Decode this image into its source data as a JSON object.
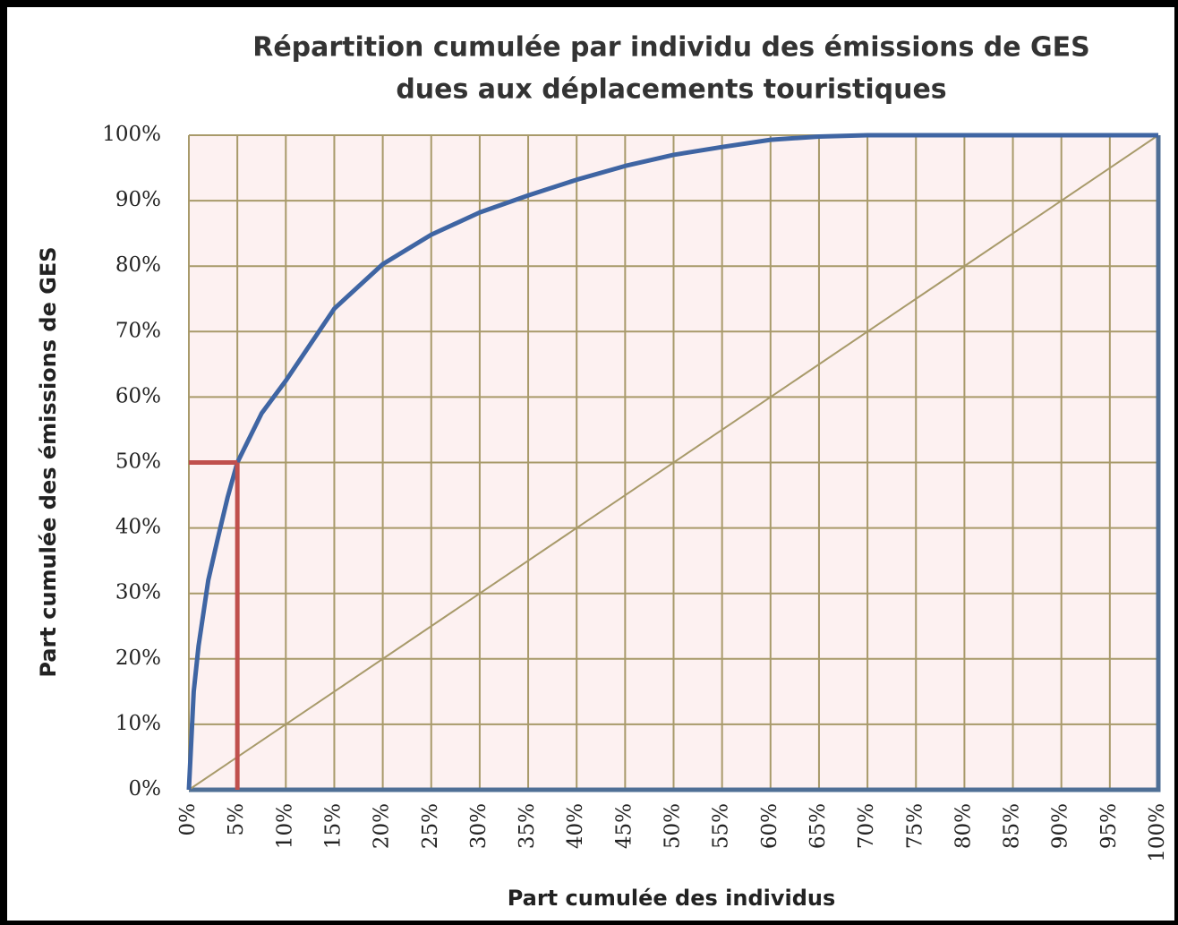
{
  "chart_data": {
    "type": "line",
    "title": [
      "Répartition cumulée par individu des émissions de GES",
      "dues aux déplacements touristiques"
    ],
    "x_label": "Part cumulée des individus",
    "y_label": "Part cumulée des émissions de GES",
    "xlim": [
      0,
      100
    ],
    "ylim": [
      0,
      100
    ],
    "xticks": [
      {
        "value": 0,
        "label": "0%"
      },
      {
        "value": 5,
        "label": "5%"
      },
      {
        "value": 10,
        "label": "10%"
      },
      {
        "value": 15,
        "label": "15%"
      },
      {
        "value": 20,
        "label": "20%"
      },
      {
        "value": 25,
        "label": "25%"
      },
      {
        "value": 30,
        "label": "30%"
      },
      {
        "value": 35,
        "label": "35%"
      },
      {
        "value": 40,
        "label": "40%"
      },
      {
        "value": 45,
        "label": "45%"
      },
      {
        "value": 50,
        "label": "50%"
      },
      {
        "value": 55,
        "label": "55%"
      },
      {
        "value": 60,
        "label": "60%"
      },
      {
        "value": 65,
        "label": "65%"
      },
      {
        "value": 70,
        "label": "70%"
      },
      {
        "value": 75,
        "label": "75%"
      },
      {
        "value": 80,
        "label": "80%"
      },
      {
        "value": 85,
        "label": "85%"
      },
      {
        "value": 90,
        "label": "90%"
      },
      {
        "value": 95,
        "label": "95%"
      },
      {
        "value": 100,
        "label": "100%"
      }
    ],
    "yticks": [
      {
        "value": 0,
        "label": "0%"
      },
      {
        "value": 10,
        "label": "10%"
      },
      {
        "value": 20,
        "label": "20%"
      },
      {
        "value": 30,
        "label": "30%"
      },
      {
        "value": 40,
        "label": "40%"
      },
      {
        "value": 50,
        "label": "50%"
      },
      {
        "value": 60,
        "label": "60%"
      },
      {
        "value": 70,
        "label": "70%"
      },
      {
        "value": 80,
        "label": "80%"
      },
      {
        "value": 90,
        "label": "90%"
      },
      {
        "value": 100,
        "label": "100%"
      }
    ],
    "grid": true,
    "series": [
      {
        "color": "#3f65a3",
        "x": [
          0,
          0.5,
          1,
          2,
          3,
          4,
          5,
          7.5,
          10,
          15,
          20,
          25,
          30,
          35,
          40,
          45,
          50,
          55,
          60,
          65,
          70,
          75,
          80,
          85,
          90,
          95,
          100
        ],
        "values": [
          0,
          15,
          22,
          32,
          38.5,
          44.7,
          50,
          57.5,
          62.5,
          73.5,
          80.3,
          84.8,
          88.2,
          90.8,
          93.2,
          95.3,
          97,
          98.2,
          99.3,
          99.8,
          100,
          100,
          100,
          100,
          100,
          100,
          100
        ]
      },
      {
        "color": "#a89a6a",
        "x": [
          0,
          100
        ],
        "values": [
          0,
          100
        ]
      }
    ],
    "reference": {
      "x": 5,
      "y": 50,
      "color": "#c0504d"
    }
  }
}
